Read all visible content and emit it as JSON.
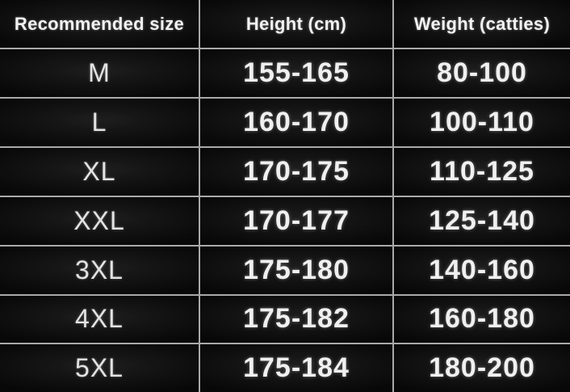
{
  "chart_data": {
    "type": "table",
    "columns": [
      "Recommended size",
      "Height (cm)",
      "Weight (catties)"
    ],
    "rows": [
      [
        "M",
        "155-165",
        "80-100"
      ],
      [
        "L",
        "160-170",
        "100-110"
      ],
      [
        "XL",
        "170-175",
        "110-125"
      ],
      [
        "XXL",
        "170-177",
        "125-140"
      ],
      [
        "3XL",
        "175-180",
        "140-160"
      ],
      [
        "4XL",
        "175-182",
        "160-180"
      ],
      [
        "5XL",
        "175-184",
        "180-200"
      ]
    ]
  },
  "colors": {
    "background": "#040404",
    "cell_background": "#070707",
    "border": "#a9a9a9",
    "header_text": "#f2f2f2",
    "value_text": "#f0f0f0",
    "size_text": "#e3e3e3"
  }
}
